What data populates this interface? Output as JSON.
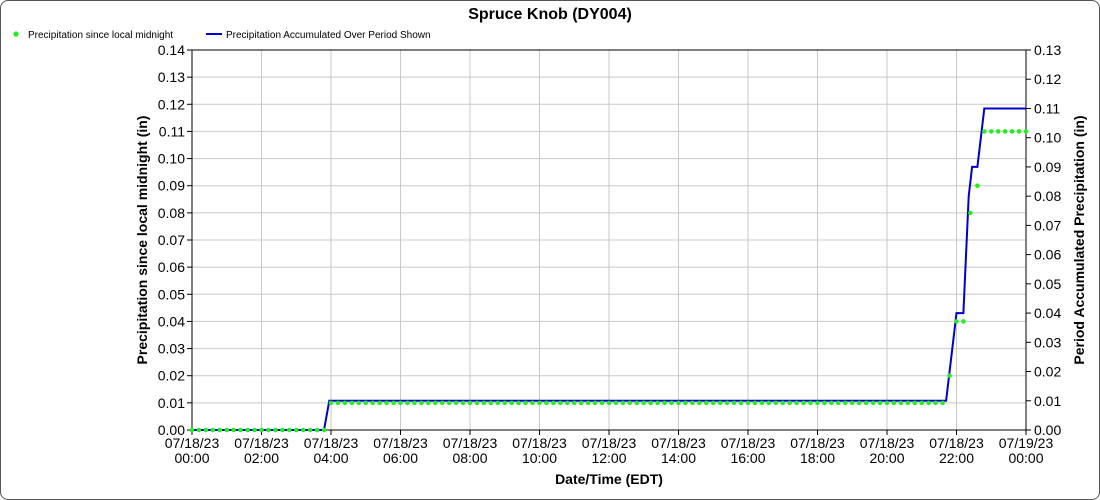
{
  "chart_data": {
    "type": "line",
    "title": "Spruce Knob (DY004)",
    "xlabel": "Date/Time (EDT)",
    "ylabel_left": "Precipitation since local midnight (in)",
    "ylabel_right": "Period Accumulated Precipitation (in)",
    "xlim": [
      "07/18/23 00:00",
      "07/19/23 00:00"
    ],
    "ylim_left": [
      0,
      0.14
    ],
    "ylim_right": [
      0,
      0.13
    ],
    "grid": true,
    "legend_position": "top-left",
    "x_ticks": [
      {
        "date": "07/18/23",
        "time": "00:00",
        "hour": 0
      },
      {
        "date": "07/18/23",
        "time": "02:00",
        "hour": 2
      },
      {
        "date": "07/18/23",
        "time": "04:00",
        "hour": 4
      },
      {
        "date": "07/18/23",
        "time": "06:00",
        "hour": 6
      },
      {
        "date": "07/18/23",
        "time": "08:00",
        "hour": 8
      },
      {
        "date": "07/18/23",
        "time": "10:00",
        "hour": 10
      },
      {
        "date": "07/18/23",
        "time": "12:00",
        "hour": 12
      },
      {
        "date": "07/18/23",
        "time": "14:00",
        "hour": 14
      },
      {
        "date": "07/18/23",
        "time": "16:00",
        "hour": 16
      },
      {
        "date": "07/18/23",
        "time": "18:00",
        "hour": 18
      },
      {
        "date": "07/18/23",
        "time": "20:00",
        "hour": 20
      },
      {
        "date": "07/18/23",
        "time": "22:00",
        "hour": 22
      },
      {
        "date": "07/19/23",
        "time": "00:00",
        "hour": 24
      }
    ],
    "y_ticks_left": [
      "0.00",
      "0.01",
      "0.02",
      "0.03",
      "0.04",
      "0.05",
      "0.06",
      "0.07",
      "0.08",
      "0.09",
      "0.10",
      "0.11",
      "0.12",
      "0.13",
      "0.14"
    ],
    "y_ticks_right": [
      "0.00",
      "0.01",
      "0.02",
      "0.03",
      "0.04",
      "0.05",
      "0.06",
      "0.07",
      "0.08",
      "0.09",
      "0.10",
      "0.11",
      "0.12",
      "0.13"
    ],
    "series": [
      {
        "name": "Precipitation since local midnight",
        "axis": "left",
        "style": "points",
        "color": "#22ee22",
        "segments": [
          {
            "start_hour": 0,
            "end_hour": 3.8,
            "step_hours": 0.2,
            "value": 0.0
          },
          {
            "start_hour": 4.0,
            "end_hour": 21.6,
            "step_hours": 0.2,
            "value": 0.01
          }
        ],
        "points": [
          {
            "hour": 21.8,
            "value": 0.02
          },
          {
            "hour": 22.0,
            "value": 0.04
          },
          {
            "hour": 22.2,
            "value": 0.04
          },
          {
            "hour": 22.4,
            "value": 0.08
          },
          {
            "hour": 22.6,
            "value": 0.09
          },
          {
            "hour": 22.8,
            "value": 0.11
          },
          {
            "hour": 23.0,
            "value": 0.11
          },
          {
            "hour": 23.2,
            "value": 0.11
          },
          {
            "hour": 23.4,
            "value": 0.11
          },
          {
            "hour": 23.6,
            "value": 0.11
          },
          {
            "hour": 23.8,
            "value": 0.11
          },
          {
            "hour": 24.0,
            "value": 0.11
          }
        ]
      },
      {
        "name": "Precipitation Accumulated Over Period Shown",
        "axis": "right",
        "style": "line",
        "color": "#0000cc",
        "x": [
          0,
          3.8,
          3.95,
          21.6,
          21.7,
          22.0,
          22.2,
          22.35,
          22.45,
          22.6,
          22.8,
          24.0
        ],
        "values": [
          0,
          0,
          0.01,
          0.01,
          0.01,
          0.04,
          0.04,
          0.08,
          0.09,
          0.09,
          0.11,
          0.11
        ]
      }
    ]
  }
}
